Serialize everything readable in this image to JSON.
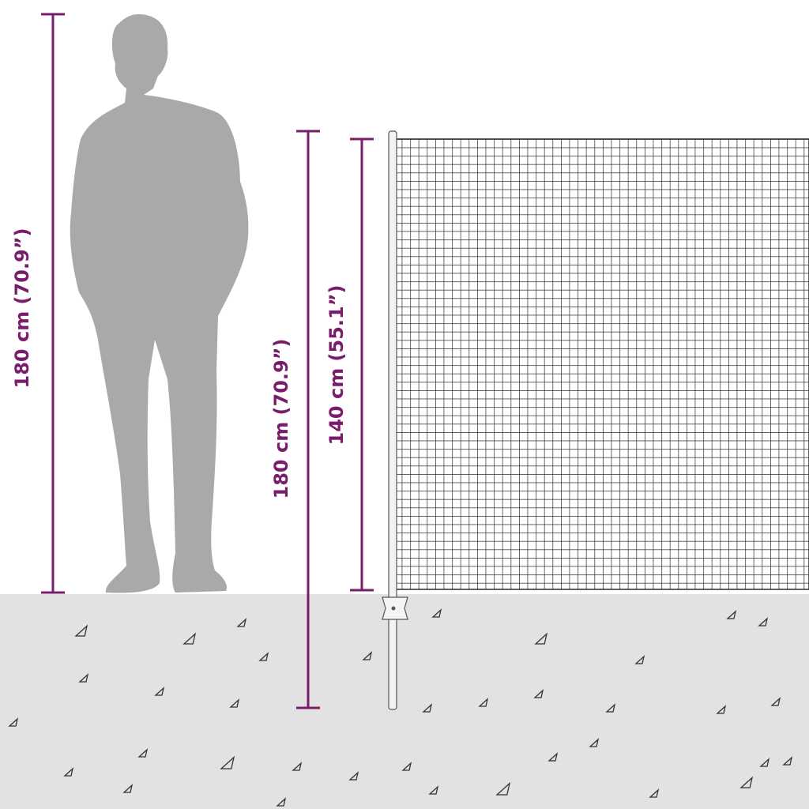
{
  "dimensions": [
    {
      "label": "180 cm (70.9”)"
    },
    {
      "label": "180 cm (70.9”)"
    },
    {
      "label": "140 cm (55.1”)"
    }
  ]
}
